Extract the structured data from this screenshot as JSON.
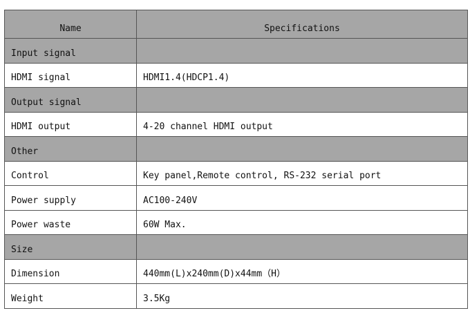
{
  "table": {
    "headers": [
      "Name",
      "Specifications"
    ],
    "rows": [
      {
        "name": "Input signal",
        "spec": "",
        "section": true
      },
      {
        "name": "HDMI signal",
        "spec": "HDMI1.4(HDCP1.4)",
        "section": false
      },
      {
        "name": "Output signal",
        "spec": "",
        "section": true
      },
      {
        "name": "HDMI output",
        "spec": "4-20 channel HDMI output",
        "section": false
      },
      {
        "name": "Other",
        "spec": "",
        "section": true
      },
      {
        "name": "Control",
        "spec": "Key panel,Remote control, RS-232 serial port",
        "section": false
      },
      {
        "name": "Power supply",
        "spec": "AC100-240V",
        "section": false
      },
      {
        "name": "Power waste",
        "spec": "60W Max.",
        "section": false
      },
      {
        "name": "Size",
        "spec": "",
        "section": true
      },
      {
        "name": "Dimension",
        "spec": "440mm(L)x240mm(D)x44mm（H）",
        "section": false
      },
      {
        "name": "Weight",
        "spec": "3.5Kg",
        "section": false
      }
    ],
    "section_color": "#a6a6a6"
  }
}
